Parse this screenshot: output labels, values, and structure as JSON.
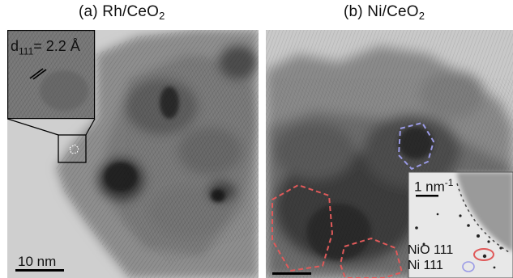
{
  "panels": {
    "a": {
      "title_prefix": "(a) Rh/CeO",
      "title_sub": "2",
      "inset_label_prefix": "d",
      "inset_label_sub": "111",
      "inset_label_suffix": "= 2.2 Å",
      "scale_bar_label": "10 nm"
    },
    "b": {
      "title_prefix": "(b) Ni/CeO",
      "title_sub": "2",
      "inset_scale_prefix": "1 nm",
      "inset_scale_sup": "-1",
      "spot_label_nio": "NiO 111",
      "spot_label_ni": "Ni 111"
    }
  },
  "colors": {
    "outline_nio": "#e05a5a",
    "outline_ni": "#9a9ae6",
    "scale_bar": "#000000"
  },
  "icons": {
    "lattice_marker": "double-slash-icon"
  }
}
